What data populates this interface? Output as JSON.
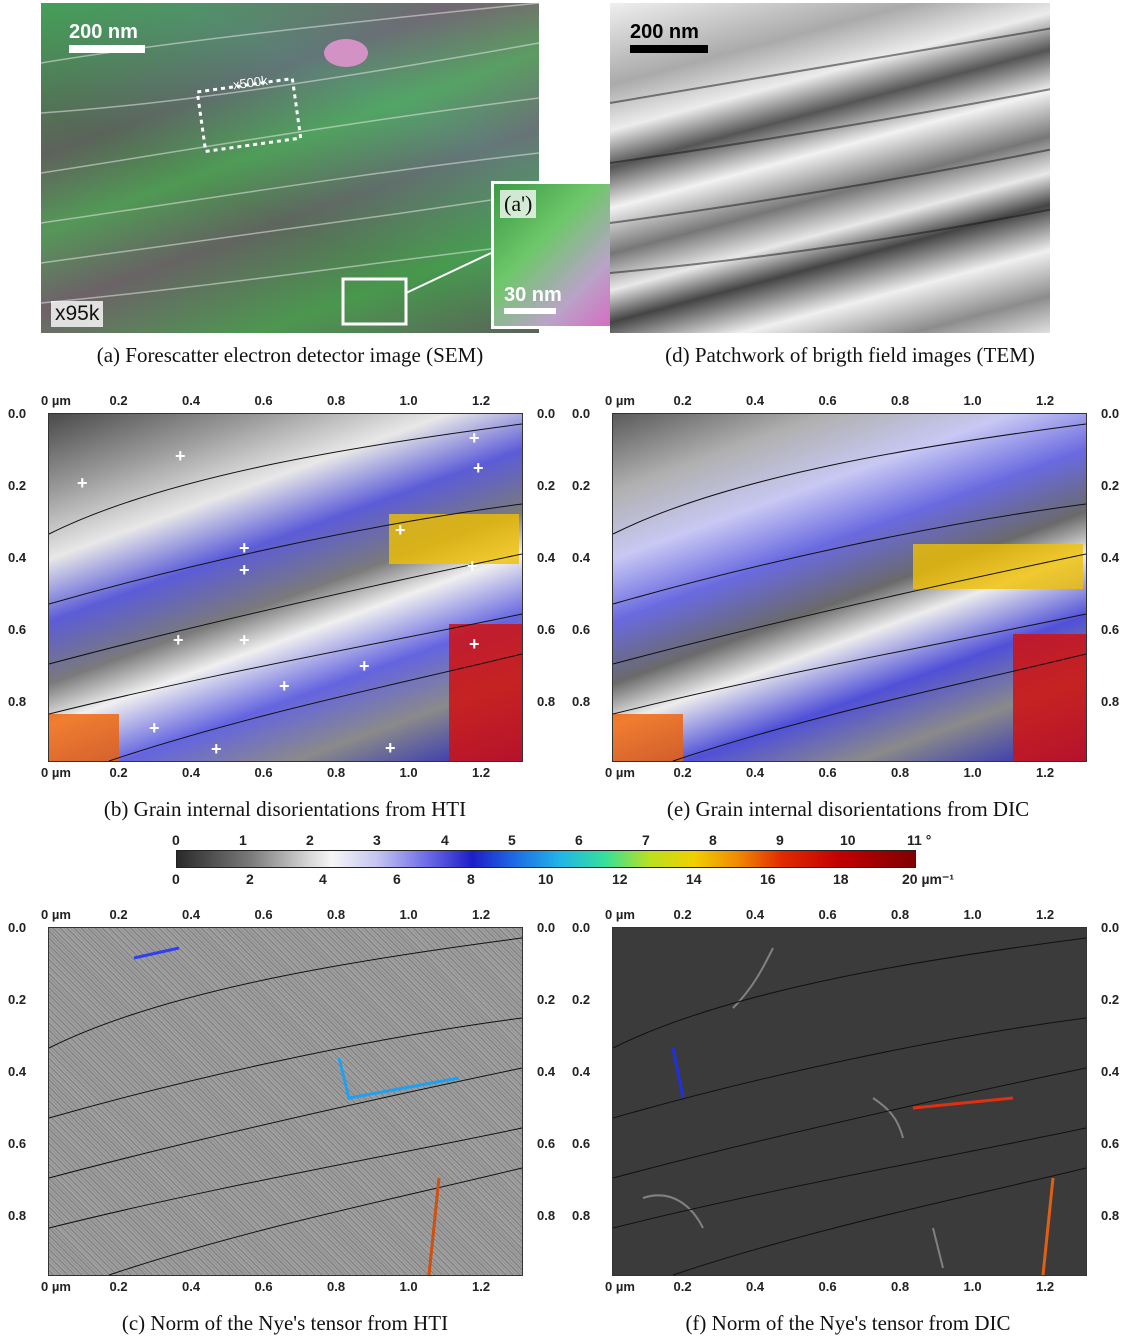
{
  "panel_a": {
    "scalebar": "200 nm",
    "magnification": "x95k",
    "zoom_box_label": "x500k",
    "inset_label": "(a')",
    "inset_scalebar": "30 nm",
    "caption": "(a) Forescatter electron detector image (SEM)"
  },
  "panel_d": {
    "scalebar": "200 nm",
    "caption": "(d) Patchwork of brigth field images (TEM)"
  },
  "panel_b": {
    "caption": "(b) Grain internal disorientations from HTI"
  },
  "panel_e": {
    "caption": "(e) Grain internal disorientations from DIC"
  },
  "panel_c": {
    "caption": "(c) Norm of the Nye's tensor from HTI"
  },
  "panel_f": {
    "caption": "(f) Norm of the Nye's tensor from DIC"
  },
  "axes": {
    "x_unit": "µm",
    "x_ticks": [
      "0",
      "0.2",
      "0.4",
      "0.6",
      "0.8",
      "1.0",
      "1.2"
    ],
    "y_ticks": [
      "0.0",
      "0.2",
      "0.4",
      "0.6",
      "0.8"
    ]
  },
  "colorbar": {
    "top_ticks": [
      "0",
      "1",
      "2",
      "3",
      "4",
      "5",
      "6",
      "7",
      "8",
      "9",
      "10",
      "11 °"
    ],
    "bottom_ticks": [
      "0",
      "2",
      "4",
      "6",
      "8",
      "10",
      "12",
      "14",
      "16",
      "18",
      "20 µm⁻¹"
    ],
    "colors": [
      "#2a2a2a",
      "#f6f6f6",
      "#1e1ec8",
      "#21b6e6",
      "#f0d000",
      "#c00000",
      "#800000"
    ]
  }
}
